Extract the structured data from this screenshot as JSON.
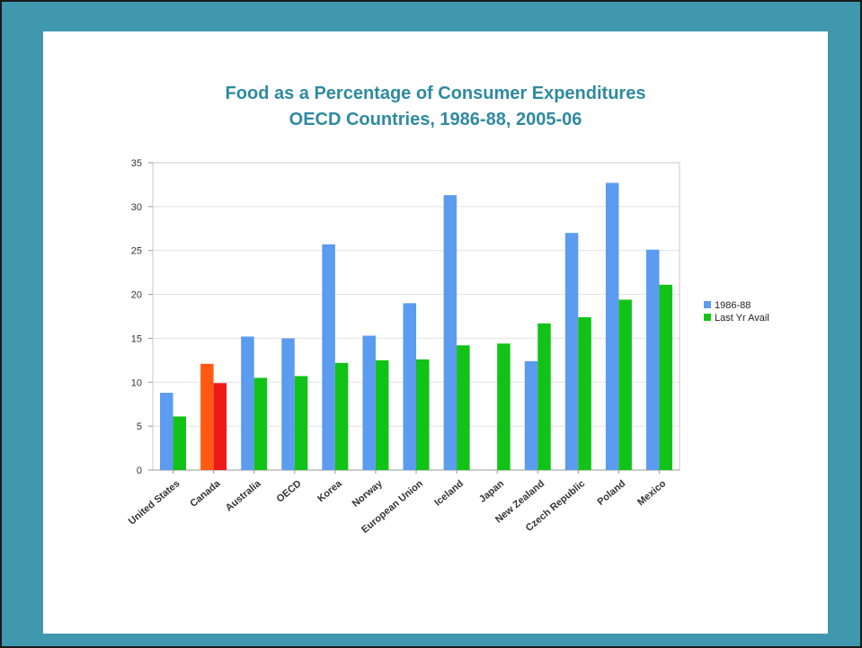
{
  "slide": {
    "title_line1": "Food as a Percentage of Consumer Expenditures",
    "title_line2": "OECD Countries, 1986-88, 2005-06"
  },
  "chart_data": {
    "type": "bar",
    "title": "Food as a Percentage of Consumer Expenditures",
    "subtitle": "OECD Countries, 1986-88, 2005-06",
    "xlabel": "",
    "ylabel": "",
    "ylim": [
      0,
      35
    ],
    "yticks": [
      0,
      5,
      10,
      15,
      20,
      25,
      30,
      35
    ],
    "grid": true,
    "legend_position": "right",
    "categories": [
      "United States",
      "Canada",
      "Australia",
      "OECD",
      "Korea",
      "Norway",
      "European Union",
      "Iceland",
      "Japan",
      "New Zealand",
      "Czech Republic",
      "Poland",
      "Mexico"
    ],
    "series": [
      {
        "name": "1986-88",
        "color": "#5b9bf0",
        "values": [
          8.8,
          12.1,
          15.2,
          15.0,
          25.7,
          15.3,
          19.0,
          31.3,
          null,
          12.4,
          27.0,
          32.7,
          25.1
        ]
      },
      {
        "name": "Last Yr Avail",
        "color": "#11c316",
        "values": [
          6.1,
          9.9,
          10.5,
          10.7,
          12.2,
          12.5,
          12.6,
          14.2,
          14.4,
          16.7,
          17.4,
          19.4,
          21.1
        ]
      }
    ],
    "highlight": {
      "category": "Canada",
      "colors": [
        "#ff5a14",
        "#ee1a1a"
      ]
    }
  }
}
